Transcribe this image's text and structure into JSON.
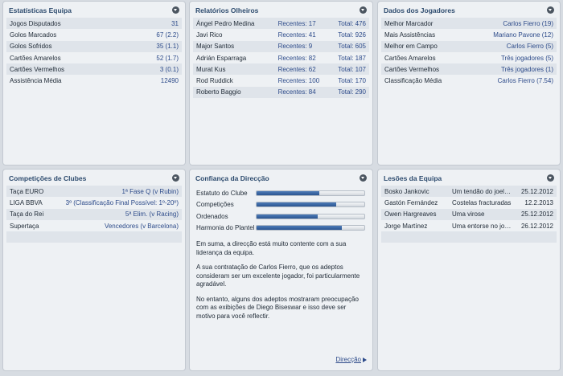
{
  "team_stats": {
    "title": "Estatísticas Equipa",
    "rows": [
      {
        "label": "Jogos Disputados",
        "value": "31"
      },
      {
        "label": "Golos Marcados",
        "value": "67 (2.2)"
      },
      {
        "label": "Golos Sofridos",
        "value": "35 (1.1)"
      },
      {
        "label": "Cartões Amarelos",
        "value": "52 (1.7)"
      },
      {
        "label": "Cartões Vermelhos",
        "value": "3 (0.1)"
      },
      {
        "label": "Assistência Média",
        "value": "12490"
      }
    ]
  },
  "scout_reports": {
    "title": "Relatórios Olheiros",
    "rows": [
      {
        "name": "Ángel Pedro Medina",
        "recent": "Recentes: 17",
        "total": "Total: 476"
      },
      {
        "name": "Javi Rico",
        "recent": "Recentes: 41",
        "total": "Total: 926"
      },
      {
        "name": "Major Santos",
        "recent": "Recentes: 9",
        "total": "Total: 605"
      },
      {
        "name": "Adrián Esparraga",
        "recent": "Recentes: 82",
        "total": "Total: 187"
      },
      {
        "name": "Murat Kus",
        "recent": "Recentes: 62",
        "total": "Total: 107"
      },
      {
        "name": "Rod Ruddick",
        "recent": "Recentes: 100",
        "total": "Total: 170"
      },
      {
        "name": "Roberto Baggio",
        "recent": "Recentes: 84",
        "total": "Total: 290"
      }
    ]
  },
  "player_data": {
    "title": "Dados dos Jogadores",
    "rows": [
      {
        "label": "Melhor Marcador",
        "value": "Carlos Fierro (19)"
      },
      {
        "label": "Mais Assistências",
        "value": "Mariano Pavone (12)"
      },
      {
        "label": "Melhor em Campo",
        "value": "Carlos Fierro (5)"
      },
      {
        "label": "Cartões Amarelos",
        "value": "Três jogadores (5)"
      },
      {
        "label": "Cartões Vermelhos",
        "value": "Três jogadores (1)"
      },
      {
        "label": "Classificação Média",
        "value": "Carlos Fierro (7.54)"
      }
    ]
  },
  "club_competitions": {
    "title": "Competições de Clubes",
    "rows": [
      {
        "label": "Taça EURO",
        "value": "1ª Fase Q (v Rubin)"
      },
      {
        "label": "LIGA BBVA",
        "value": "3º (Classificação Final Possível: 1º-20º)"
      },
      {
        "label": "Taça do Rei",
        "value": "5ª Elim. (v Racing)"
      },
      {
        "label": "Supertaça",
        "value": "Vencedores (v Barcelona)"
      }
    ]
  },
  "board_confidence": {
    "title": "Confiança da Direcção",
    "bars": [
      {
        "label": "Estatuto do Clube",
        "level": 0.58
      },
      {
        "label": "Competições",
        "level": 0.74
      },
      {
        "label": "Ordenados",
        "level": 0.57
      },
      {
        "label": "Harmonia do Plantel",
        "level": 0.79
      }
    ],
    "paragraphs": [
      "Em suma, a direcção está muito contente com a sua liderança da equipa.",
      "A sua contratação de Carlos Fierro, que os adeptos consideram ser um excelente jogador, foi particularmente agradável.",
      "No entanto, alguns dos adeptos mostraram preocupação com as exibições de Diego Biseswar e isso deve ser motivo para você reflectir."
    ],
    "link_label": "Direcção"
  },
  "injuries": {
    "title": "Lesões da Equipa",
    "rows": [
      {
        "name": "Bosko Jankovic",
        "injury": "Um tendão do joelho tor...",
        "date": "25.12.2012"
      },
      {
        "name": "Gastón Fernández",
        "injury": "Costelas fracturadas",
        "date": "12.2.2013"
      },
      {
        "name": "Owen Hargreaves",
        "injury": "Uma virose",
        "date": "25.12.2012"
      },
      {
        "name": "Jorge Martínez",
        "injury": "Uma entorse no joelho",
        "date": "26.12.2012"
      }
    ]
  },
  "colors": {
    "panel_title": "#2d4b6e",
    "link_blue": "#2d4b8a",
    "bar_fill": "#2b5591",
    "background": "#d7dce2"
  },
  "icons": {
    "panel_menu": "chevron-down-icon",
    "direction_link": "arrow-right-icon"
  }
}
